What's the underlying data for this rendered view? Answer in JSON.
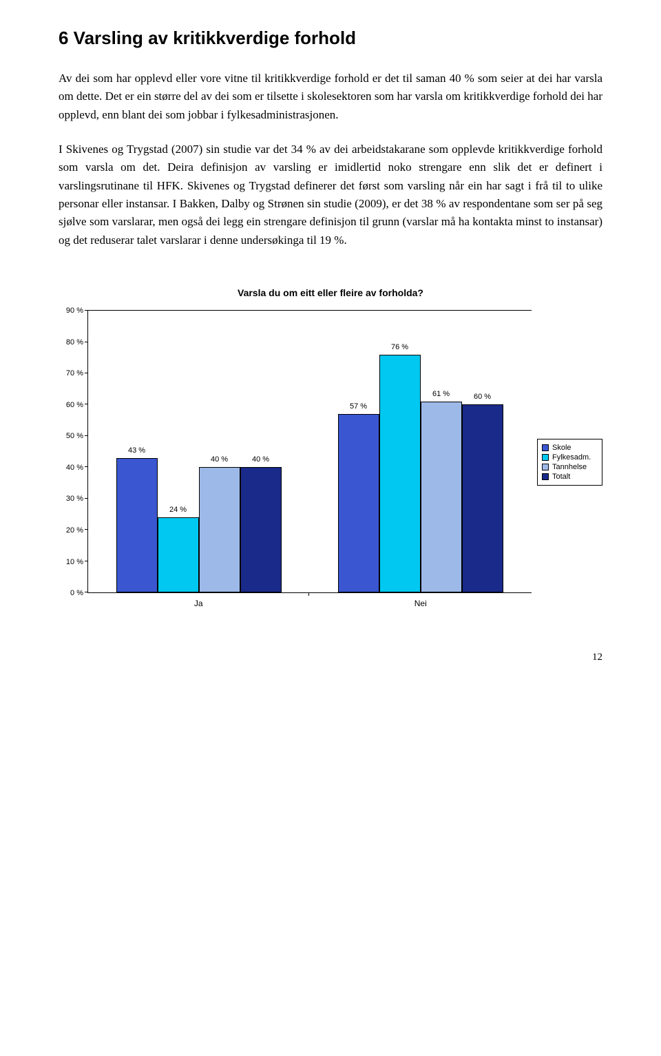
{
  "heading": "6    Varsling av kritikkverdige forhold",
  "para1": "Av dei som har opplevd eller vore vitne til kritikkverdige forhold er det til saman 40 % som seier at dei har varsla om dette. Det er ein større del av dei som er tilsette i skolesektoren som har varsla om kritikkverdige forhold dei har opplevd, enn blant dei som jobbar i fylkesadministrasjonen.",
  "para2": "I Skivenes og Trygstad (2007) sin studie var det 34 % av dei arbeidstakarane som opplevde kritikkverdige forhold som varsla om det.  Deira definisjon av varsling er imidlertid noko strengare enn slik det er definert i varslingsrutinane til HFK. Skivenes og Trygstad definerer det først som varsling når ein har sagt i frå til to ulike personar eller instansar. I Bakken, Dalby og Strønen sin studie (2009), er det 38 % av respondentane som ser på seg sjølve som varslarar, men også dei legg ein strengare definisjon til grunn (varslar må ha kontakta minst to instansar) og det reduserar talet varslarar i denne undersøkinga til 19 %.",
  "chart": {
    "title": "Varsla du om eitt eller fleire av forholda?",
    "type": "bar",
    "ymax": 90,
    "ytick_step": 10,
    "ytick_labels": [
      "0 %",
      "10 %",
      "20 %",
      "30 %",
      "40 %",
      "50 %",
      "60 %",
      "70 %",
      "80 %",
      "90 %"
    ],
    "series": [
      {
        "name": "Skole",
        "color": "#3a56d0"
      },
      {
        "name": "Fylkesadm.",
        "color": "#00c8f0"
      },
      {
        "name": "Tannhelse",
        "color": "#9db9e8"
      },
      {
        "name": "Totalt",
        "color": "#1a2a8a"
      }
    ],
    "categories": [
      "Ja",
      "Nei"
    ],
    "data": [
      [
        43,
        24,
        40,
        40
      ],
      [
        57,
        76,
        61,
        60
      ]
    ],
    "background_color": "#ffffff",
    "bar_border": "#000000",
    "label_fontsize": 11
  },
  "page_number": "12"
}
